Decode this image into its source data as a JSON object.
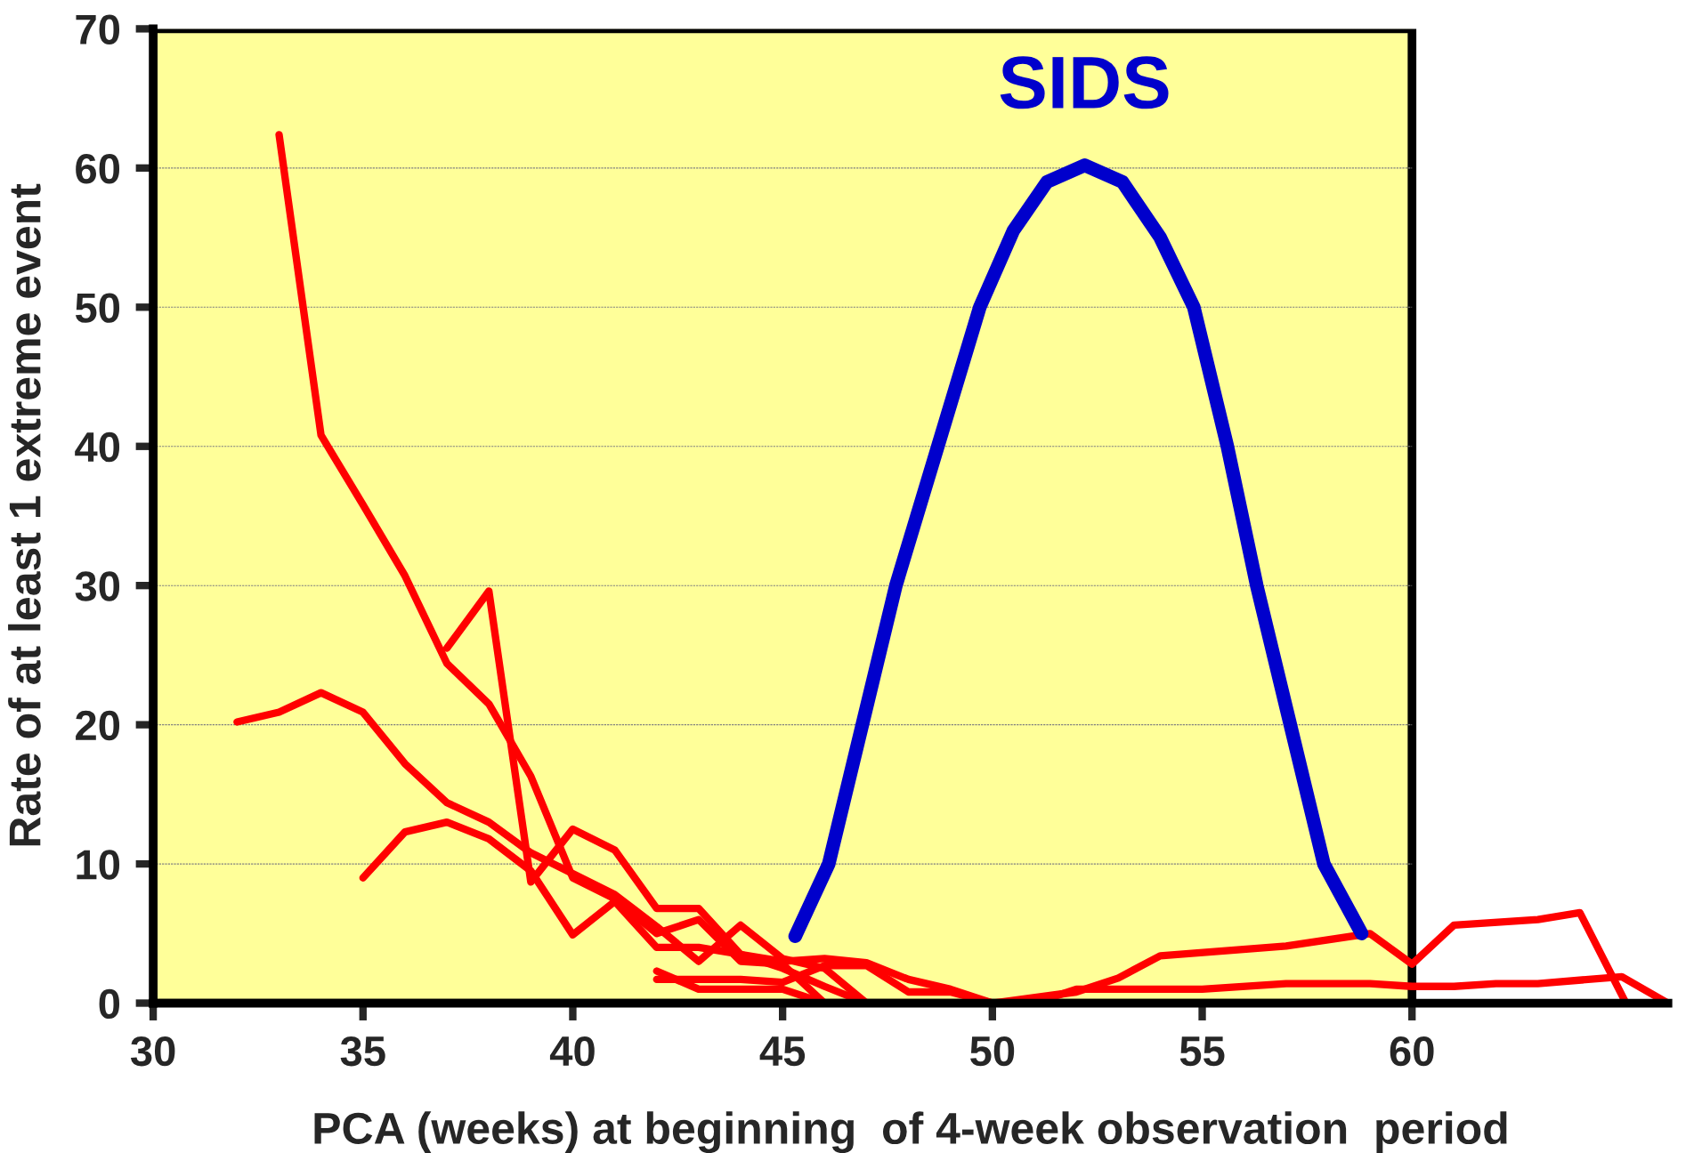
{
  "chart_data": {
    "type": "line",
    "xlabel": "PCA (weeks) at beginning  of 4-week observation  period",
    "ylabel": "Rate of at least 1 extreme event",
    "xlim": [
      30,
      66.1
    ],
    "xticks": [
      30,
      35,
      40,
      45,
      50,
      55,
      60
    ],
    "ylim": [
      0,
      70
    ],
    "yticks": [
      0,
      10,
      20,
      30,
      40,
      50,
      60,
      70
    ],
    "grid": "y",
    "legend": false,
    "marker": "none",
    "line_style": "solid",
    "bands": [
      {
        "axis": "x",
        "from": 30,
        "to": 60,
        "label": null,
        "color": "#ffff99"
      }
    ],
    "series": [
      {
        "color": "#ff0000",
        "x": [
          33,
          34,
          35,
          36,
          37,
          38,
          39,
          40,
          41,
          42,
          43,
          44,
          45,
          46
        ],
        "values": [
          62.4,
          40.8,
          35.8,
          30.7,
          24.4,
          21.5,
          16.3,
          9,
          7.5,
          5,
          6,
          3,
          2.8,
          0
        ]
      },
      {
        "color": "#ff0000",
        "x": [
          37,
          38,
          39,
          40,
          41,
          42,
          43,
          44,
          45,
          46,
          47
        ],
        "values": [
          25.5,
          29.6,
          8.7,
          12.5,
          11,
          6.8,
          6.8,
          3.5,
          2.5,
          1.2,
          0
        ]
      },
      {
        "color": "#ff0000",
        "x": [
          32,
          33,
          34,
          35,
          36,
          37,
          38,
          39,
          40,
          41,
          42,
          43,
          44,
          45,
          46,
          47
        ],
        "values": [
          20.2,
          20.9,
          22.3,
          20.9,
          17.2,
          14.4,
          13,
          10.8,
          9.3,
          7.8,
          5.5,
          3,
          5.6,
          3.2,
          2.5,
          0
        ]
      },
      {
        "color": "#ff0000",
        "x": [
          35,
          36,
          37,
          38,
          39,
          40,
          41,
          42,
          43,
          44,
          45,
          46,
          47,
          48,
          49,
          50
        ],
        "values": [
          9,
          12.3,
          13,
          11.8,
          9.5,
          4.9,
          7.3,
          4,
          4,
          3.5,
          3,
          3.2,
          2.9,
          1.7,
          1,
          0
        ]
      },
      {
        "color": "#ff0000",
        "x": [
          42,
          43,
          44,
          45,
          46,
          48,
          50,
          52,
          53,
          54,
          57,
          59,
          60,
          61,
          63,
          64,
          65.1
        ],
        "values": [
          2.3,
          1,
          1,
          1,
          0,
          0,
          0,
          0.8,
          1.8,
          3.4,
          4.1,
          5,
          2.8,
          5.6,
          6,
          6.5,
          0
        ]
      },
      {
        "color": "#ff0000",
        "x": [
          42,
          43,
          44,
          45,
          46,
          47,
          48,
          49,
          50,
          51,
          52,
          53,
          55,
          57,
          59,
          60,
          61,
          62,
          63,
          65,
          66.1
        ],
        "values": [
          1.7,
          1.7,
          1.7,
          1.5,
          2.7,
          2.7,
          0.8,
          0.8,
          0,
          0,
          1,
          1,
          1,
          1.4,
          1.4,
          1.2,
          1.2,
          1.4,
          1.4,
          1.9,
          0
        ]
      },
      {
        "color": "#0000cc",
        "name": "SIDS",
        "x": [
          45.3,
          46.1,
          46.9,
          47.7,
          48.7,
          49.7,
          50.5,
          51.3,
          52.2,
          53.1,
          54,
          54.8,
          55.6,
          56.3,
          57.1,
          57.9,
          58.8
        ],
        "values": [
          4.8,
          10,
          20,
          30,
          40,
          50,
          55.5,
          59,
          60.2,
          59,
          55,
          50,
          40,
          30,
          20,
          10,
          5
        ]
      }
    ]
  }
}
